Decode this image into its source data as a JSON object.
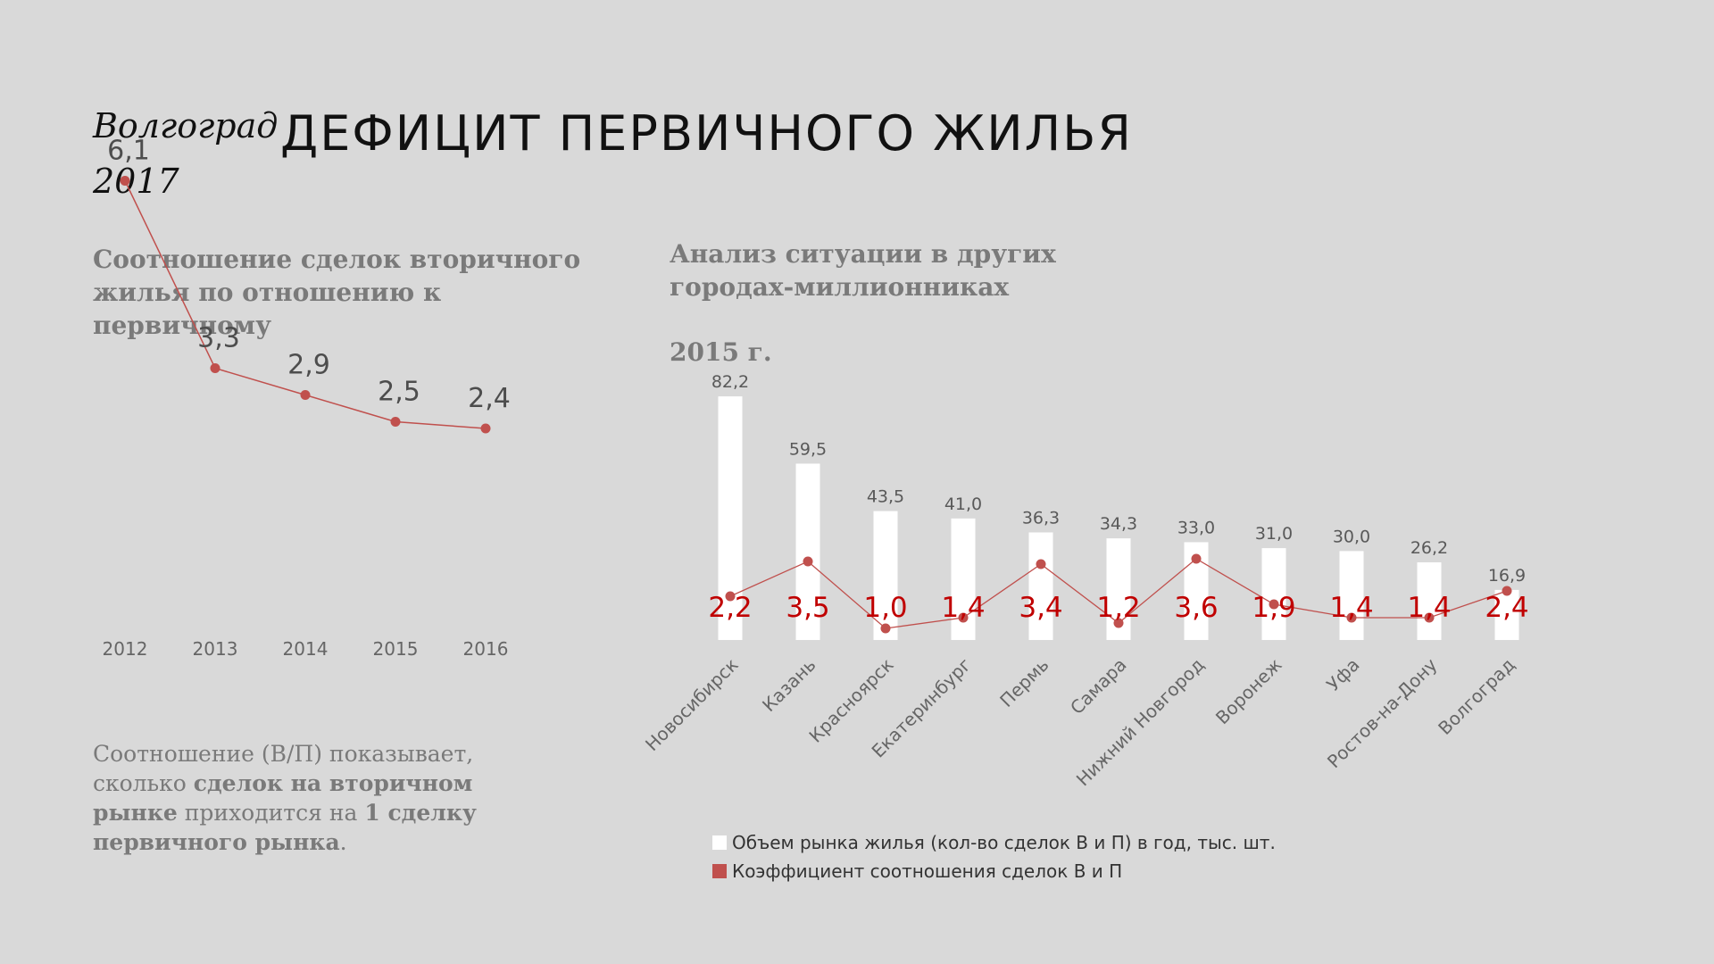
{
  "brand": {
    "city": "Волгоград",
    "year": "2017"
  },
  "title": "ДЕФИЦИТ ПЕРВИЧНОГО ЖИЛЬЯ",
  "left_title": "Соотношение сделок вторичного жилья по отношению к первичному",
  "right_title": "Анализ ситуации в других городах-миллионниках",
  "year_label": "2015 г.",
  "note": {
    "part1": "Соотношение (В/П) показывает, сколько ",
    "bold1": "сделок на вторичном рынке",
    "part2": " приходится на ",
    "bold2": "1 сделку первичного рынка",
    "part3": "."
  },
  "colors": {
    "bar": "#ffffff",
    "line": "#c0504d",
    "ratio_label": "#c00000",
    "text": "#595959"
  },
  "chart_data": [
    {
      "type": "line",
      "categories": [
        "2012",
        "2013",
        "2014",
        "2015",
        "2016"
      ],
      "series": [
        {
          "values": [
            6.1,
            3.3,
            2.9,
            2.5,
            2.4
          ],
          "labels": [
            "6,1",
            "3,3",
            "2,9",
            "2,5",
            "2,4"
          ]
        }
      ]
    },
    {
      "type": "bar",
      "categories": [
        "Новосибирск",
        "Казань",
        "Красноярск",
        "Екатеринбург",
        "Пермь",
        "Самара",
        "Нижний Новгород",
        "Воронеж",
        "Уфа",
        "Ростов-на-Дону",
        "Волгоград"
      ],
      "series": [
        {
          "name": "Объем рынка жилья (кол-во сделок В и П) в год, тыс. шт.",
          "type": "bar",
          "values": [
            82.2,
            59.5,
            43.5,
            41.0,
            36.3,
            34.3,
            33.0,
            31.0,
            30.0,
            26.2,
            16.9
          ],
          "labels": [
            "82,2",
            "59,5",
            "43,5",
            "41,0",
            "36,3",
            "34,3",
            "33,0",
            "31,0",
            "30,0",
            "26,2",
            "16,9"
          ]
        },
        {
          "name": "Коэффициент соотношения сделок В и П",
          "type": "line",
          "values": [
            2.2,
            3.5,
            1.0,
            1.4,
            3.4,
            1.2,
            3.6,
            1.9,
            1.4,
            1.4,
            2.4
          ],
          "labels": [
            "2,2",
            "3,5",
            "1,0",
            "1,4",
            "3,4",
            "1,2",
            "3,6",
            "1,9",
            "1,4",
            "1,4",
            "2,4"
          ]
        }
      ]
    }
  ]
}
